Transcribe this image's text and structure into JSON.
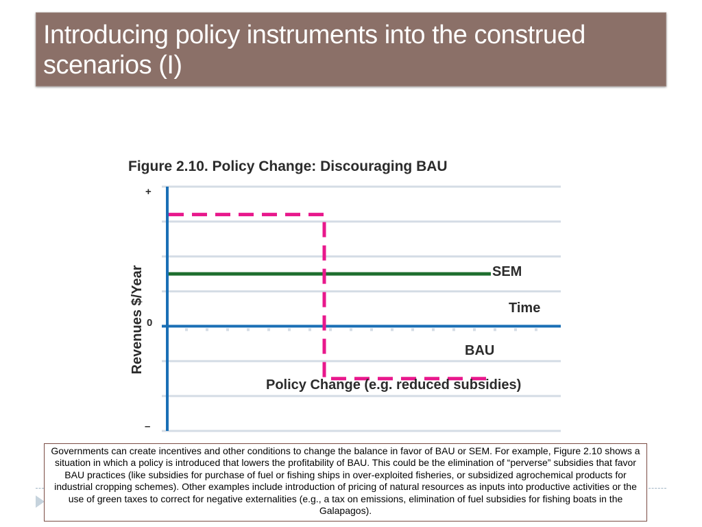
{
  "slide": {
    "title": "Introducing policy instruments into the construed scenarios (I)",
    "caption": "Governments can create incentives and other conditions to change the balance in favor of BAU or SEM. For example, Figure 2.10 shows a situation in which a policy is introduced that lowers the profitability of BAU. This could be the elimination of “perverse”  subsidies that favor BAU practices (like subsidies for purchase of fuel or fishing ships in over-exploited fisheries, or subsidized agrochemical products for industrial cropping schemes). Other examples include introduction of pricing of natural resources as inputs into productive activities or the use of green taxes to correct for negative externalities (e.g., a tax on emissions, elimination of fuel subsidies for fishing boats in the Galapagos).",
    "colors": {
      "title_bg": "#8b7068",
      "title_text": "#ffffff",
      "caption_border": "#7a4b42"
    }
  },
  "chart_data": {
    "type": "line",
    "title": "Figure 2.10. Policy Change: Discouraging BAU",
    "ylabel": "Revenues  $/Year",
    "y_tick_labels": [
      "+",
      "0",
      "–"
    ],
    "x": [
      0,
      1,
      2
    ],
    "ylim": [
      -3,
      4
    ],
    "grid": true,
    "series": [
      {
        "name": "SEM",
        "style": "solid",
        "color": "#1e6e2e",
        "values": [
          1.5,
          1.5,
          1.5
        ]
      },
      {
        "name": "BAU",
        "style": "dashed",
        "color": "#e8188c",
        "values": [
          3.2,
          -1.5,
          -1.5
        ]
      }
    ],
    "zero_line_label": "Time",
    "annotation": "Policy Change (e.g. reduced subsidies)",
    "colors": {
      "axis": "#1a6fb5",
      "grid": "#d4dce5"
    }
  }
}
